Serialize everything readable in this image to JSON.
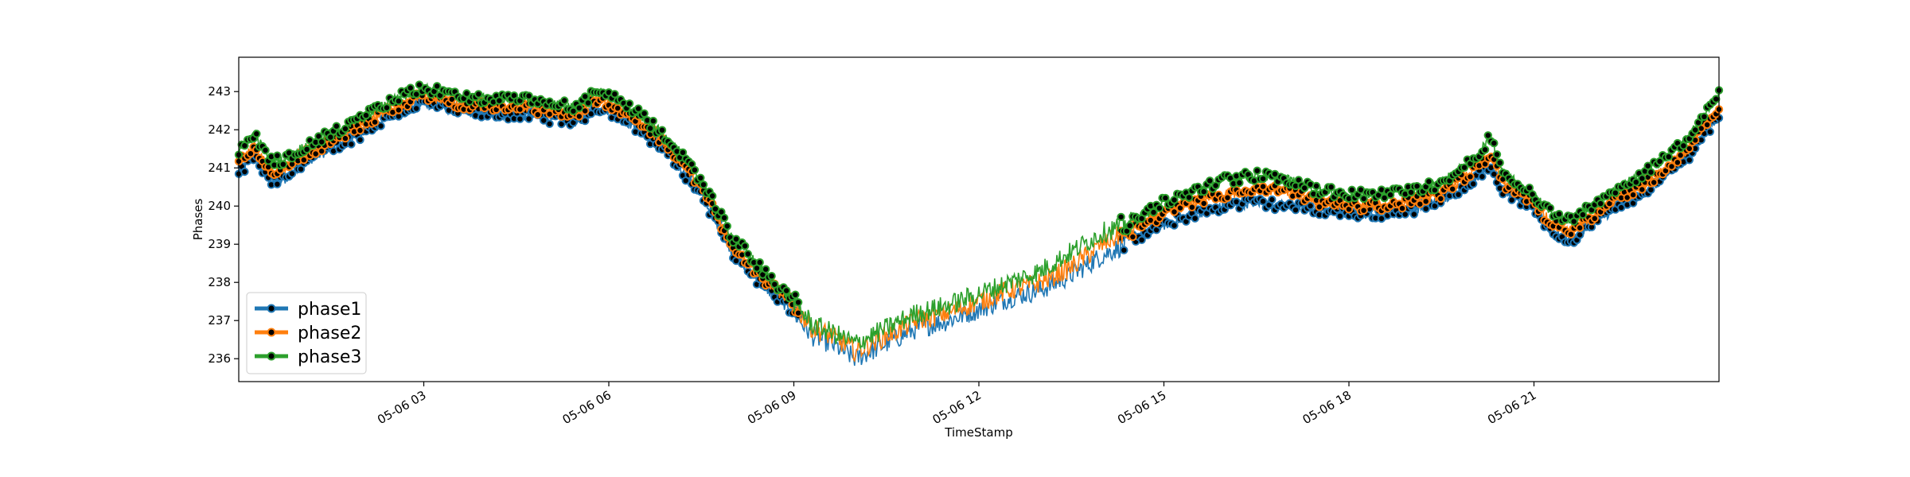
{
  "chart_data": {
    "type": "line",
    "title": "",
    "xlabel": "TimeStamp",
    "ylabel": "Phases",
    "x_range": [
      0,
      24
    ],
    "ylim": [
      235.4,
      243.9
    ],
    "grid": false,
    "legend_position": "lower-left",
    "x_ticks": [
      {
        "value": 3,
        "label": "05-06 03"
      },
      {
        "value": 6,
        "label": "05-06 06"
      },
      {
        "value": 9,
        "label": "05-06 09"
      },
      {
        "value": 12,
        "label": "05-06 12"
      },
      {
        "value": 15,
        "label": "05-06 15"
      },
      {
        "value": 18,
        "label": "05-06 18"
      },
      {
        "value": 21,
        "label": "05-06 21"
      }
    ],
    "y_ticks": [
      236,
      237,
      238,
      239,
      240,
      241,
      242,
      243
    ],
    "series": [
      {
        "name": "phase1",
        "color": "#1f77b4",
        "x": [
          0,
          0.25,
          0.5,
          0.75,
          1.0,
          1.5,
          2.0,
          2.5,
          3.0,
          3.5,
          4.0,
          4.5,
          5.0,
          5.5,
          5.8,
          6.0,
          6.5,
          7.0,
          7.5,
          8.0,
          8.5,
          9.0,
          9.3,
          9.6,
          10.0,
          10.5,
          11.0,
          11.5,
          12.0,
          12.5,
          13.0,
          13.5,
          14.0,
          14.5,
          15.0,
          15.5,
          16.0,
          16.5,
          17.0,
          17.5,
          18.0,
          18.5,
          19.0,
          19.5,
          20.0,
          20.3,
          20.5,
          21.0,
          21.3,
          21.6,
          22.0,
          22.5,
          23.0,
          23.5,
          24.0
        ],
        "values": [
          240.8,
          241.3,
          240.6,
          240.7,
          241.1,
          241.5,
          241.9,
          242.4,
          242.7,
          242.5,
          242.4,
          242.4,
          242.3,
          242.2,
          242.6,
          242.5,
          242.0,
          241.3,
          240.3,
          238.8,
          237.9,
          237.2,
          236.6,
          236.4,
          236.0,
          236.4,
          236.8,
          237.0,
          237.3,
          237.6,
          237.8,
          238.2,
          238.7,
          239.1,
          239.5,
          239.8,
          240.0,
          240.1,
          240.0,
          239.9,
          239.8,
          239.8,
          239.9,
          240.1,
          240.7,
          241.0,
          240.4,
          239.9,
          239.3,
          239.1,
          239.6,
          240.1,
          240.6,
          241.3,
          242.4
        ]
      },
      {
        "name": "phase2",
        "color": "#ff7f0e",
        "x": [
          0,
          0.25,
          0.5,
          0.75,
          1.0,
          1.5,
          2.0,
          2.5,
          3.0,
          3.5,
          4.0,
          4.5,
          5.0,
          5.5,
          5.8,
          6.0,
          6.5,
          7.0,
          7.5,
          8.0,
          8.5,
          9.0,
          9.3,
          9.6,
          10.0,
          10.5,
          11.0,
          11.5,
          12.0,
          12.5,
          13.0,
          13.5,
          14.0,
          14.5,
          15.0,
          15.5,
          16.0,
          16.5,
          17.0,
          17.5,
          18.0,
          18.5,
          19.0,
          19.5,
          20.0,
          20.3,
          20.5,
          21.0,
          21.3,
          21.6,
          22.0,
          22.5,
          23.0,
          23.5,
          24.0
        ],
        "values": [
          241.1,
          241.6,
          240.9,
          241.0,
          241.3,
          241.7,
          242.1,
          242.6,
          242.9,
          242.7,
          242.6,
          242.6,
          242.5,
          242.4,
          242.8,
          242.7,
          242.2,
          241.5,
          240.5,
          239.0,
          238.1,
          237.4,
          236.8,
          236.6,
          236.2,
          236.6,
          237.0,
          237.2,
          237.5,
          237.8,
          238.0,
          238.4,
          239.0,
          239.4,
          239.8,
          240.1,
          240.3,
          240.4,
          240.4,
          240.1,
          240.0,
          240.0,
          240.1,
          240.3,
          240.9,
          241.3,
          240.6,
          240.1,
          239.5,
          239.4,
          239.8,
          240.3,
          240.8,
          241.5,
          242.6
        ]
      },
      {
        "name": "phase3",
        "color": "#2ca02c",
        "x": [
          0,
          0.25,
          0.5,
          0.75,
          1.0,
          1.5,
          2.0,
          2.5,
          3.0,
          3.5,
          4.0,
          4.5,
          5.0,
          5.5,
          5.8,
          6.0,
          6.5,
          7.0,
          7.5,
          8.0,
          8.5,
          9.0,
          9.3,
          9.6,
          10.0,
          10.5,
          11.0,
          11.5,
          12.0,
          12.5,
          13.0,
          13.5,
          14.0,
          14.5,
          15.0,
          15.5,
          16.0,
          16.5,
          17.0,
          17.5,
          18.0,
          18.5,
          19.0,
          19.5,
          20.0,
          20.3,
          20.5,
          21.0,
          21.3,
          21.6,
          22.0,
          22.5,
          23.0,
          23.5,
          24.0
        ],
        "values": [
          241.4,
          241.9,
          241.2,
          241.2,
          241.5,
          241.9,
          242.3,
          242.8,
          243.1,
          242.9,
          242.8,
          242.8,
          242.7,
          242.6,
          243.0,
          242.9,
          242.4,
          241.7,
          240.7,
          239.2,
          238.3,
          237.5,
          236.9,
          236.7,
          236.4,
          236.8,
          237.2,
          237.4,
          237.7,
          238.0,
          238.3,
          238.8,
          239.3,
          239.6,
          240.1,
          240.4,
          240.7,
          240.8,
          240.7,
          240.4,
          240.3,
          240.3,
          240.4,
          240.6,
          241.2,
          241.8,
          240.9,
          240.3,
          239.8,
          239.6,
          240.1,
          240.6,
          241.1,
          241.8,
          242.9
        ]
      }
    ]
  }
}
